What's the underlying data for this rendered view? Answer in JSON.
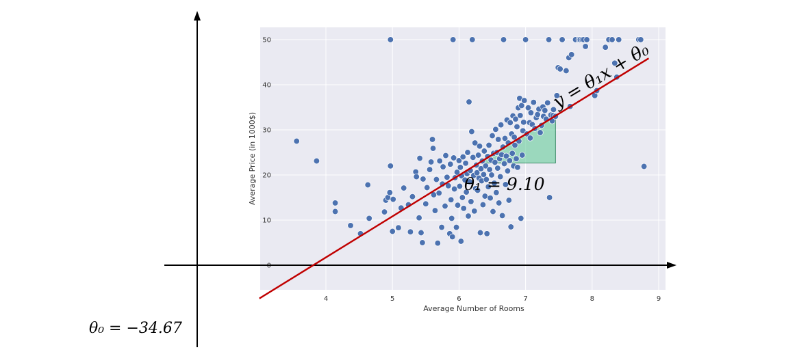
{
  "chart_data": {
    "type": "scatter",
    "title": "",
    "xlabel": "Average Number of Rooms",
    "ylabel": "Average Price (in 1000$)",
    "xlim": [
      3.3,
      9.1
    ],
    "ylim": [
      -2.5,
      53
    ],
    "xticks": [
      "4",
      "5",
      "6",
      "7",
      "8",
      "9"
    ],
    "yticks": [
      "0",
      "10",
      "20",
      "30",
      "40",
      "50"
    ],
    "grid": true,
    "point_color": "#4c72b0",
    "plot_bg": "#eaeaf2",
    "regression": {
      "equation": "y = θ₁x + θ₀",
      "slope": 9.1,
      "intercept": -34.67,
      "color": "#c00000"
    },
    "annotations": {
      "slope_label": "θ₁ = 9.10",
      "intercept_label": "θ₀ = −34.67",
      "equation_label": "y = θ₁x + θ₀",
      "slope_triangle_color": "#66cc99"
    },
    "points": [
      [
        3.56,
        27.5
      ],
      [
        3.86,
        23.1
      ],
      [
        4.14,
        13.8
      ],
      [
        4.14,
        11.9
      ],
      [
        4.37,
        8.8
      ],
      [
        4.52,
        7.0
      ],
      [
        4.63,
        17.8
      ],
      [
        4.65,
        10.4
      ],
      [
        4.88,
        11.8
      ],
      [
        4.9,
        14.4
      ],
      [
        4.93,
        15.0
      ],
      [
        4.96,
        16.1
      ],
      [
        4.97,
        22.0
      ],
      [
        4.97,
        50.0
      ],
      [
        5.0,
        7.5
      ],
      [
        5.01,
        14.6
      ],
      [
        5.09,
        8.3
      ],
      [
        5.13,
        12.7
      ],
      [
        5.17,
        17.1
      ],
      [
        5.24,
        13.4
      ],
      [
        5.27,
        7.4
      ],
      [
        5.3,
        15.2
      ],
      [
        5.35,
        20.7
      ],
      [
        5.36,
        19.6
      ],
      [
        5.4,
        10.5
      ],
      [
        5.41,
        23.7
      ],
      [
        5.43,
        7.2
      ],
      [
        5.45,
        5.0
      ],
      [
        5.46,
        19.1
      ],
      [
        5.5,
        13.6
      ],
      [
        5.52,
        17.2
      ],
      [
        5.56,
        21.2
      ],
      [
        5.58,
        22.9
      ],
      [
        5.6,
        27.9
      ],
      [
        5.61,
        25.9
      ],
      [
        5.62,
        15.6
      ],
      [
        5.64,
        12.1
      ],
      [
        5.66,
        19.0
      ],
      [
        5.68,
        4.9
      ],
      [
        5.7,
        16.0
      ],
      [
        5.71,
        23.1
      ],
      [
        5.74,
        8.4
      ],
      [
        5.75,
        18.0
      ],
      [
        5.76,
        21.8
      ],
      [
        5.79,
        13.1
      ],
      [
        5.8,
        24.3
      ],
      [
        5.82,
        19.5
      ],
      [
        5.84,
        17.6
      ],
      [
        5.86,
        7.0
      ],
      [
        5.87,
        22.4
      ],
      [
        5.88,
        14.5
      ],
      [
        5.89,
        10.4
      ],
      [
        5.9,
        6.3
      ],
      [
        5.91,
        50.0
      ],
      [
        5.92,
        23.8
      ],
      [
        5.93,
        16.9
      ],
      [
        5.94,
        19.4
      ],
      [
        5.96,
        8.4
      ],
      [
        5.97,
        20.6
      ],
      [
        5.98,
        13.3
      ],
      [
        6.0,
        23.2
      ],
      [
        6.01,
        17.5
      ],
      [
        6.02,
        21.7
      ],
      [
        6.03,
        5.3
      ],
      [
        6.04,
        19.8
      ],
      [
        6.05,
        15.0
      ],
      [
        6.06,
        24.0
      ],
      [
        6.07,
        12.6
      ],
      [
        6.09,
        18.9
      ],
      [
        6.1,
        22.6
      ],
      [
        6.11,
        16.2
      ],
      [
        6.12,
        20.3
      ],
      [
        6.13,
        25.0
      ],
      [
        6.14,
        10.9
      ],
      [
        6.15,
        36.2
      ],
      [
        6.16,
        18.5
      ],
      [
        6.17,
        21.0
      ],
      [
        6.18,
        14.1
      ],
      [
        6.19,
        29.6
      ],
      [
        6.2,
        50.0
      ],
      [
        6.21,
        23.9
      ],
      [
        6.22,
        19.9
      ],
      [
        6.23,
        12.0
      ],
      [
        6.24,
        27.1
      ],
      [
        6.25,
        17.0
      ],
      [
        6.26,
        22.2
      ],
      [
        6.27,
        20.5
      ],
      [
        6.28,
        16.6
      ],
      [
        6.29,
        24.4
      ],
      [
        6.3,
        19.3
      ],
      [
        6.31,
        26.4
      ],
      [
        6.32,
        7.2
      ],
      [
        6.33,
        21.4
      ],
      [
        6.34,
        18.7
      ],
      [
        6.35,
        23.1
      ],
      [
        6.36,
        13.4
      ],
      [
        6.37,
        20.1
      ],
      [
        6.38,
        25.3
      ],
      [
        6.39,
        15.3
      ],
      [
        6.4,
        22.0
      ],
      [
        6.41,
        19.0
      ],
      [
        6.42,
        7.0
      ],
      [
        6.43,
        24.1
      ],
      [
        6.44,
        17.4
      ],
      [
        6.45,
        26.6
      ],
      [
        6.46,
        21.2
      ],
      [
        6.47,
        14.9
      ],
      [
        6.48,
        23.3
      ],
      [
        6.49,
        20.0
      ],
      [
        6.5,
        28.7
      ],
      [
        6.51,
        11.9
      ],
      [
        6.52,
        24.8
      ],
      [
        6.53,
        18.2
      ],
      [
        6.54,
        22.8
      ],
      [
        6.55,
        30.1
      ],
      [
        6.56,
        16.1
      ],
      [
        6.57,
        25.0
      ],
      [
        6.58,
        21.5
      ],
      [
        6.59,
        27.9
      ],
      [
        6.6,
        13.8
      ],
      [
        6.61,
        23.6
      ],
      [
        6.62,
        19.6
      ],
      [
        6.63,
        31.1
      ],
      [
        6.64,
        24.5
      ],
      [
        6.65,
        11.0
      ],
      [
        6.66,
        26.2
      ],
      [
        6.67,
        50.0
      ],
      [
        6.68,
        22.5
      ],
      [
        6.69,
        28.1
      ],
      [
        6.7,
        17.9
      ],
      [
        6.71,
        24.2
      ],
      [
        6.72,
        32.2
      ],
      [
        6.73,
        20.9
      ],
      [
        6.74,
        27.1
      ],
      [
        6.75,
        14.4
      ],
      [
        6.76,
        23.2
      ],
      [
        6.77,
        31.6
      ],
      [
        6.78,
        8.5
      ],
      [
        6.79,
        29.1
      ],
      [
        6.8,
        24.8
      ],
      [
        6.81,
        33.1
      ],
      [
        6.82,
        22.0
      ],
      [
        6.83,
        28.4
      ],
      [
        6.84,
        26.6
      ],
      [
        6.85,
        32.4
      ],
      [
        6.86,
        23.6
      ],
      [
        6.87,
        30.7
      ],
      [
        6.88,
        21.7
      ],
      [
        6.89,
        34.9
      ],
      [
        6.9,
        27.5
      ],
      [
        6.91,
        37.0
      ],
      [
        6.92,
        33.2
      ],
      [
        6.93,
        10.4
      ],
      [
        6.94,
        35.4
      ],
      [
        6.95,
        24.4
      ],
      [
        6.96,
        29.8
      ],
      [
        6.97,
        31.7
      ],
      [
        6.98,
        36.5
      ],
      [
        7.0,
        50.0
      ],
      [
        7.02,
        29.1
      ],
      [
        7.04,
        34.9
      ],
      [
        7.06,
        31.6
      ],
      [
        7.07,
        28.2
      ],
      [
        7.08,
        33.8
      ],
      [
        7.1,
        31.2
      ],
      [
        7.12,
        36.1
      ],
      [
        7.14,
        30.3
      ],
      [
        7.16,
        32.7
      ],
      [
        7.18,
        33.4
      ],
      [
        7.2,
        34.6
      ],
      [
        7.22,
        29.4
      ],
      [
        7.24,
        31.0
      ],
      [
        7.26,
        35.1
      ],
      [
        7.27,
        33.0
      ],
      [
        7.29,
        34.3
      ],
      [
        7.31,
        32.4
      ],
      [
        7.33,
        36.0
      ],
      [
        7.35,
        50.0
      ],
      [
        7.36,
        15.0
      ],
      [
        7.38,
        33.3
      ],
      [
        7.4,
        32.0
      ],
      [
        7.41,
        33.2
      ],
      [
        7.42,
        34.5
      ],
      [
        7.45,
        33.0
      ],
      [
        7.47,
        37.6
      ],
      [
        7.49,
        43.8
      ],
      [
        7.52,
        43.5
      ],
      [
        7.55,
        50.0
      ],
      [
        7.61,
        43.1
      ],
      [
        7.65,
        46.0
      ],
      [
        7.67,
        35.2
      ],
      [
        7.69,
        46.7
      ],
      [
        7.75,
        50.0
      ],
      [
        7.8,
        50.0
      ],
      [
        7.82,
        50.0
      ],
      [
        7.85,
        50.0
      ],
      [
        7.87,
        50.0
      ],
      [
        7.9,
        48.5
      ],
      [
        7.92,
        50.0
      ],
      [
        8.04,
        37.6
      ],
      [
        8.07,
        38.7
      ],
      [
        8.2,
        48.3
      ],
      [
        8.25,
        50.0
      ],
      [
        8.3,
        50.0
      ],
      [
        8.34,
        44.8
      ],
      [
        8.37,
        41.7
      ],
      [
        8.4,
        50.0
      ],
      [
        8.7,
        50.0
      ],
      [
        8.73,
        50.0
      ],
      [
        8.78,
        21.9
      ]
    ]
  }
}
